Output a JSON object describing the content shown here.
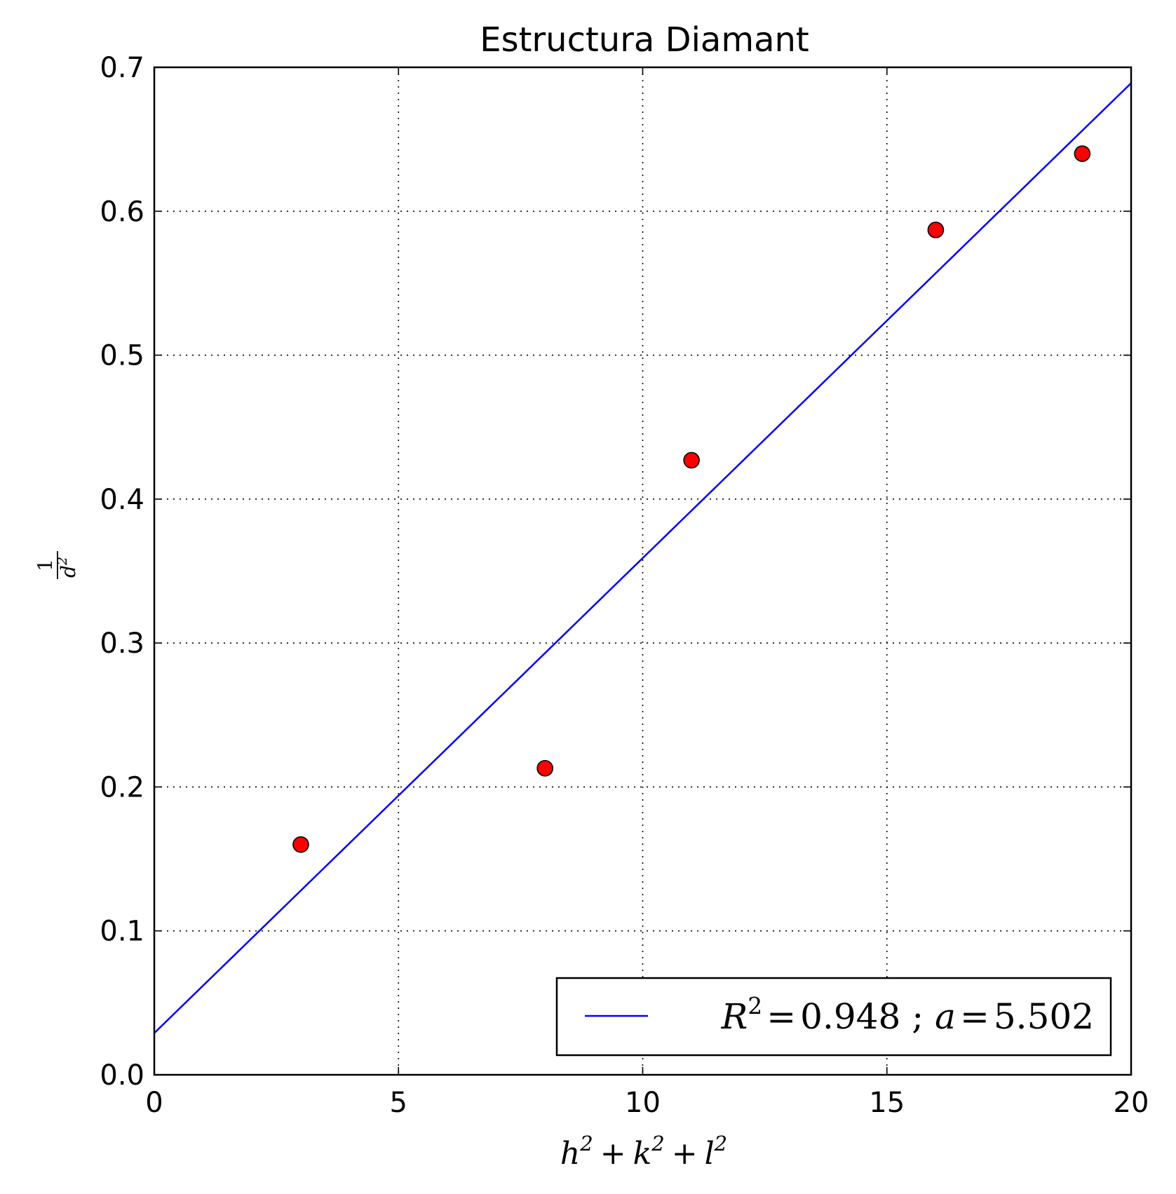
{
  "chart_data": {
    "type": "scatter",
    "title": "Estructura Diamant",
    "xlabel": {
      "h": "h",
      "k": "k",
      "l": "l",
      "exp": "2",
      "plus": "+"
    },
    "ylabel": {
      "num": "1",
      "den": "d",
      "exp": "2"
    },
    "xlim": [
      0,
      20
    ],
    "ylim": [
      0,
      0.7
    ],
    "xticks": [
      0,
      5,
      10,
      15,
      20
    ],
    "xtick_labels": [
      "0",
      "5",
      "10",
      "15",
      "20"
    ],
    "yticks": [
      0.0,
      0.1,
      0.2,
      0.3,
      0.4,
      0.5,
      0.6,
      0.7
    ],
    "ytick_labels": [
      "0.0",
      "0.1",
      "0.2",
      "0.3",
      "0.4",
      "0.5",
      "0.6",
      "0.7"
    ],
    "grid": true,
    "series": [
      {
        "name": "data",
        "kind": "scatter",
        "color": "#ff0000",
        "x": [
          3,
          8,
          11,
          16,
          19
        ],
        "y": [
          0.16,
          0.213,
          0.427,
          0.587,
          0.64
        ]
      },
      {
        "name": "fit",
        "kind": "line",
        "color": "#0000ff",
        "x": [
          0,
          20
        ],
        "y": [
          0.029,
          0.689
        ]
      }
    ],
    "legend": {
      "position": "lower-right",
      "r": "R",
      "exp": "2",
      "eq": "=",
      "r2_value": "0.948",
      "sep": ";",
      "a": "a",
      "a_value": "5.502"
    }
  }
}
